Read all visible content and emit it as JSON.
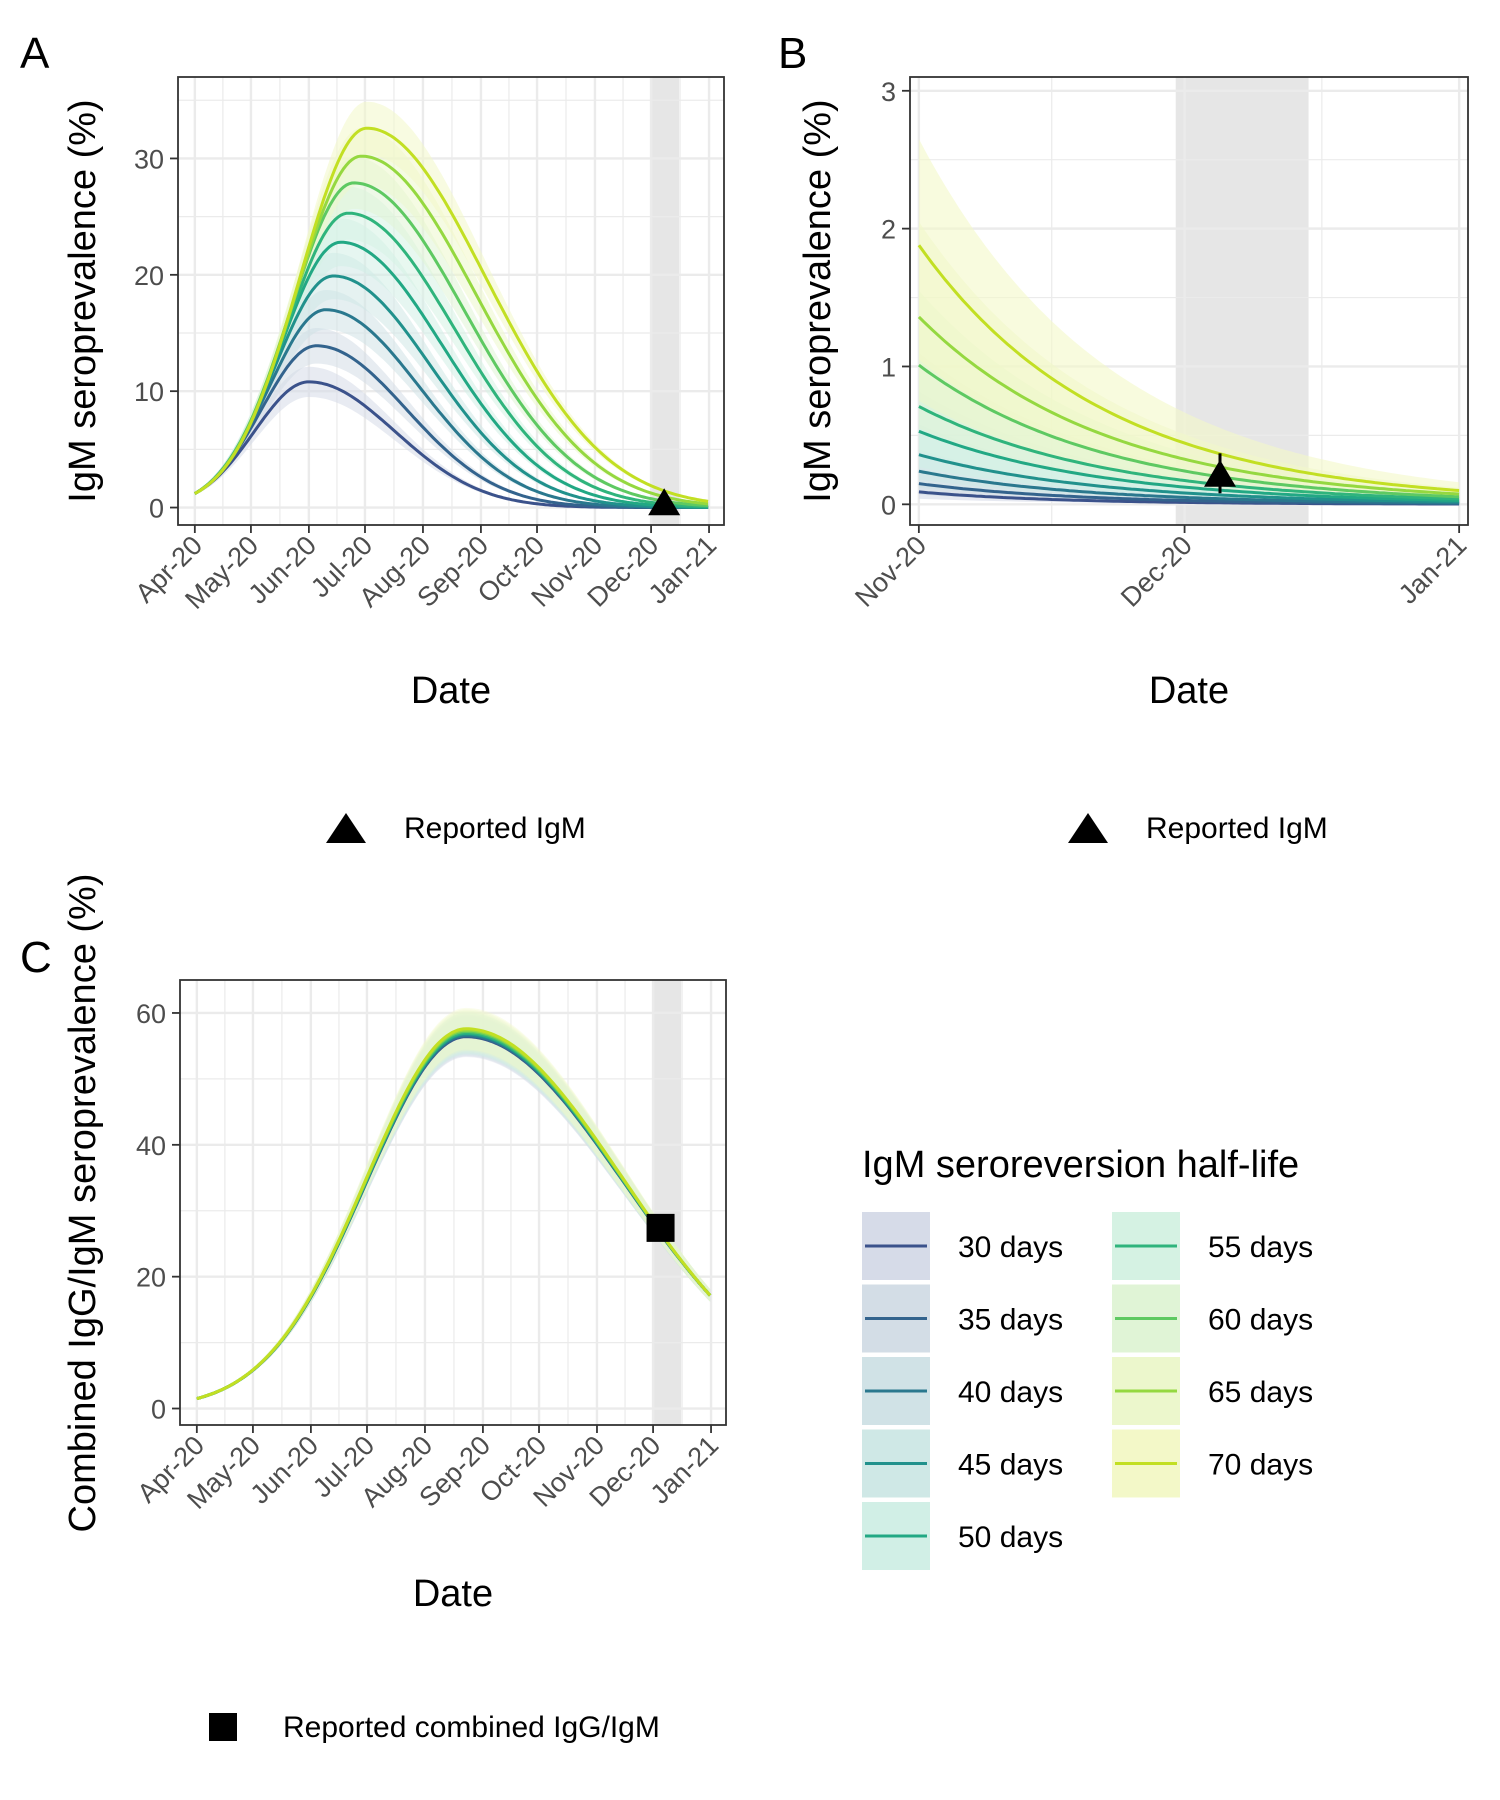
{
  "colors": {
    "series": [
      "#3b528b",
      "#33638d",
      "#2a788e",
      "#21918c",
      "#22a884",
      "#2fb47c",
      "#5ec962",
      "#95d840",
      "#c2df23"
    ],
    "band_fill": [
      "#d6dbe8",
      "#d3dde6",
      "#d0e2e6",
      "#cfe8e6",
      "#d1efe6",
      "#d5f2e3",
      "#e0f4d6",
      "#ecf7cc",
      "#f3f8c8"
    ],
    "shade": "#e6e6e6",
    "grid": "#ebebeb",
    "axis": "#333333",
    "marker": "#000000"
  },
  "legend": {
    "title": "IgM seroreversion half-life",
    "items": [
      "30 days",
      "35 days",
      "40 days",
      "45 days",
      "50 days",
      "55 days",
      "60 days",
      "65 days",
      "70 days"
    ],
    "reported_igm": "Reported IgM",
    "reported_combined": "Reported combined IgG/IgM"
  },
  "chart_data": [
    {
      "panel": "A",
      "type": "line",
      "xlabel": "Date",
      "ylabel": "IgM seroprevalence (%)",
      "x_ticks": [
        "Apr-20",
        "May-20",
        "Jun-20",
        "Jul-20",
        "Aug-20",
        "Sep-20",
        "Oct-20",
        "Nov-20",
        "Dec-20",
        "Jan-21"
      ],
      "x_range": [
        "2020-03-23",
        "2021-01-09"
      ],
      "ylim": [
        -1.5,
        37
      ],
      "y_ticks": [
        0,
        10,
        20,
        30
      ],
      "shaded_period": [
        "2020-12-01",
        "2020-12-16"
      ],
      "series": [
        {
          "half_life_days": 30,
          "peak": 10.8,
          "peak_date": "2020-06-01",
          "ribbon_pct": 0.12
        },
        {
          "half_life_days": 35,
          "peak": 13.9,
          "peak_date": "2020-06-05",
          "ribbon_pct": 0.11
        },
        {
          "half_life_days": 40,
          "peak": 17.0,
          "peak_date": "2020-06-10",
          "ribbon_pct": 0.1
        },
        {
          "half_life_days": 45,
          "peak": 19.9,
          "peak_date": "2020-06-14",
          "ribbon_pct": 0.1
        },
        {
          "half_life_days": 50,
          "peak": 22.8,
          "peak_date": "2020-06-18",
          "ribbon_pct": 0.09
        },
        {
          "half_life_days": 55,
          "peak": 25.3,
          "peak_date": "2020-06-22",
          "ribbon_pct": 0.09
        },
        {
          "half_life_days": 60,
          "peak": 27.9,
          "peak_date": "2020-06-25",
          "ribbon_pct": 0.08
        },
        {
          "half_life_days": 65,
          "peak": 30.2,
          "peak_date": "2020-06-29",
          "ribbon_pct": 0.08
        },
        {
          "half_life_days": 70,
          "peak": 32.6,
          "peak_date": "2020-07-02",
          "ribbon_pct": 0.07
        }
      ],
      "start_value": 1.2,
      "marker": {
        "shape": "triangle",
        "date": "2020-12-08",
        "value": 0.2,
        "label": "Reported IgM"
      }
    },
    {
      "panel": "B",
      "type": "line",
      "xlabel": "Date",
      "ylabel": "IgM seroprevalence (%)",
      "x_ticks": [
        "Nov-20",
        "Dec-20",
        "Jan-21"
      ],
      "x_range": [
        "2020-10-31",
        "2021-01-02"
      ],
      "ylim": [
        -0.15,
        3.1
      ],
      "y_ticks": [
        0,
        1,
        2,
        3
      ],
      "shaded_period": [
        "2020-11-30",
        "2020-12-15"
      ],
      "series": [
        {
          "half_life_days": 30,
          "start": 0.09,
          "end": 0.002,
          "band_lo": 0.04,
          "band_hi": 0.15
        },
        {
          "half_life_days": 35,
          "start": 0.15,
          "end": 0.005,
          "band_lo": 0.07,
          "band_hi": 0.26
        },
        {
          "half_life_days": 40,
          "start": 0.24,
          "end": 0.01,
          "band_lo": 0.12,
          "band_hi": 0.4
        },
        {
          "half_life_days": 45,
          "start": 0.36,
          "end": 0.018,
          "band_lo": 0.18,
          "band_hi": 0.58
        },
        {
          "half_life_days": 50,
          "start": 0.53,
          "end": 0.028,
          "band_lo": 0.27,
          "band_hi": 0.82
        },
        {
          "half_life_days": 55,
          "start": 0.71,
          "end": 0.04,
          "band_lo": 0.38,
          "band_hi": 1.1
        },
        {
          "half_life_days": 60,
          "start": 1.01,
          "end": 0.055,
          "band_lo": 0.55,
          "band_hi": 1.55
        },
        {
          "half_life_days": 65,
          "start": 1.36,
          "end": 0.075,
          "band_lo": 0.75,
          "band_hi": 2.05
        },
        {
          "half_life_days": 70,
          "start": 1.88,
          "end": 0.1,
          "band_lo": 1.05,
          "band_hi": 2.65
        }
      ],
      "marker": {
        "shape": "triangle",
        "date": "2020-12-05",
        "value": 0.2,
        "error": [
          0.08,
          0.37
        ],
        "label": "Reported IgM"
      }
    },
    {
      "panel": "C",
      "type": "line",
      "xlabel": "Date",
      "ylabel": "Combined IgG/IgM seroprevalence (%)",
      "x_ticks": [
        "Apr-20",
        "May-20",
        "Jun-20",
        "Jul-20",
        "Aug-20",
        "Sep-20",
        "Oct-20",
        "Nov-20",
        "Dec-20",
        "Jan-21"
      ],
      "x_range": [
        "2020-03-23",
        "2021-01-09"
      ],
      "ylim": [
        -2.5,
        65
      ],
      "y_ticks": [
        0,
        20,
        40,
        60
      ],
      "shaded_period": [
        "2020-12-01",
        "2020-12-16"
      ],
      "series": [
        {
          "half_life_days": 30,
          "peak": 56.4
        },
        {
          "half_life_days": 35,
          "peak": 56.5
        },
        {
          "half_life_days": 40,
          "peak": 56.6
        },
        {
          "half_life_days": 45,
          "peak": 56.8
        },
        {
          "half_life_days": 50,
          "peak": 56.9
        },
        {
          "half_life_days": 55,
          "peak": 57.0
        },
        {
          "half_life_days": 60,
          "peak": 57.2
        },
        {
          "half_life_days": 65,
          "peak": 57.4
        },
        {
          "half_life_days": 70,
          "peak": 57.6
        }
      ],
      "start_value": 1.5,
      "peak_date": "2020-08-23",
      "end_value": 17,
      "end_date": "2021-01-01",
      "marker": {
        "shape": "square",
        "date": "2020-12-05",
        "value": 27.4,
        "label": "Reported combined IgG/IgM"
      }
    }
  ]
}
